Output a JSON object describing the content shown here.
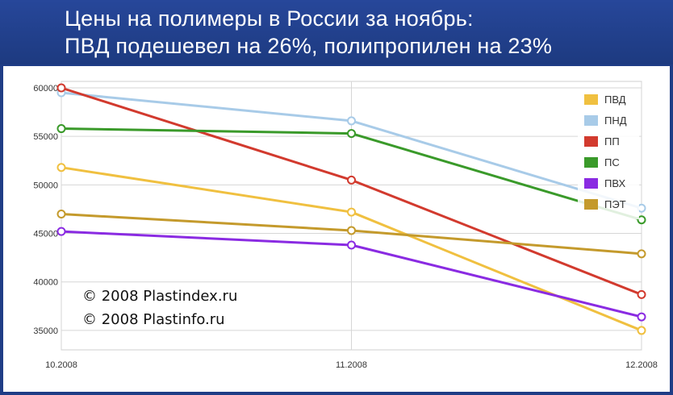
{
  "title": {
    "line1": "Цены на полимеры в России за ноябрь:",
    "line2": "ПВД подешевел на 26%, полипропилен на 23%"
  },
  "copyright": [
    "© 2008 Plastindex.ru",
    "© 2008 Plastinfo.ru"
  ],
  "colors": {
    "header": "#1f3d86",
    "grid": "#d6d6d6"
  },
  "chart_data": {
    "type": "line",
    "title": "Цены на полимеры в России за ноябрь: ПВД подешевел на 26%, полипропилен на 23%",
    "categories": [
      "10.2008",
      "11.2008",
      "12.2008"
    ],
    "ylim": [
      33000,
      60000
    ],
    "y_ticks": [
      35000,
      40000,
      45000,
      50000,
      55000,
      60000
    ],
    "grid": true,
    "legend_position": "top-right",
    "series": [
      {
        "name": "ПВД",
        "color": "#f0c040",
        "values": [
          51800,
          47200,
          35000
        ]
      },
      {
        "name": "ПНД",
        "color": "#a8cbe8",
        "values": [
          59500,
          56600,
          47600
        ]
      },
      {
        "name": "ПП",
        "color": "#d23a2e",
        "values": [
          60000,
          50500,
          38700
        ]
      },
      {
        "name": "ПС",
        "color": "#3a9a2a",
        "values": [
          55800,
          55300,
          46400
        ]
      },
      {
        "name": "ПВХ",
        "color": "#8a2be2",
        "values": [
          45200,
          43800,
          36400
        ]
      },
      {
        "name": "ПЭТ",
        "color": "#c49a2c",
        "values": [
          47000,
          45300,
          42900
        ]
      }
    ]
  }
}
